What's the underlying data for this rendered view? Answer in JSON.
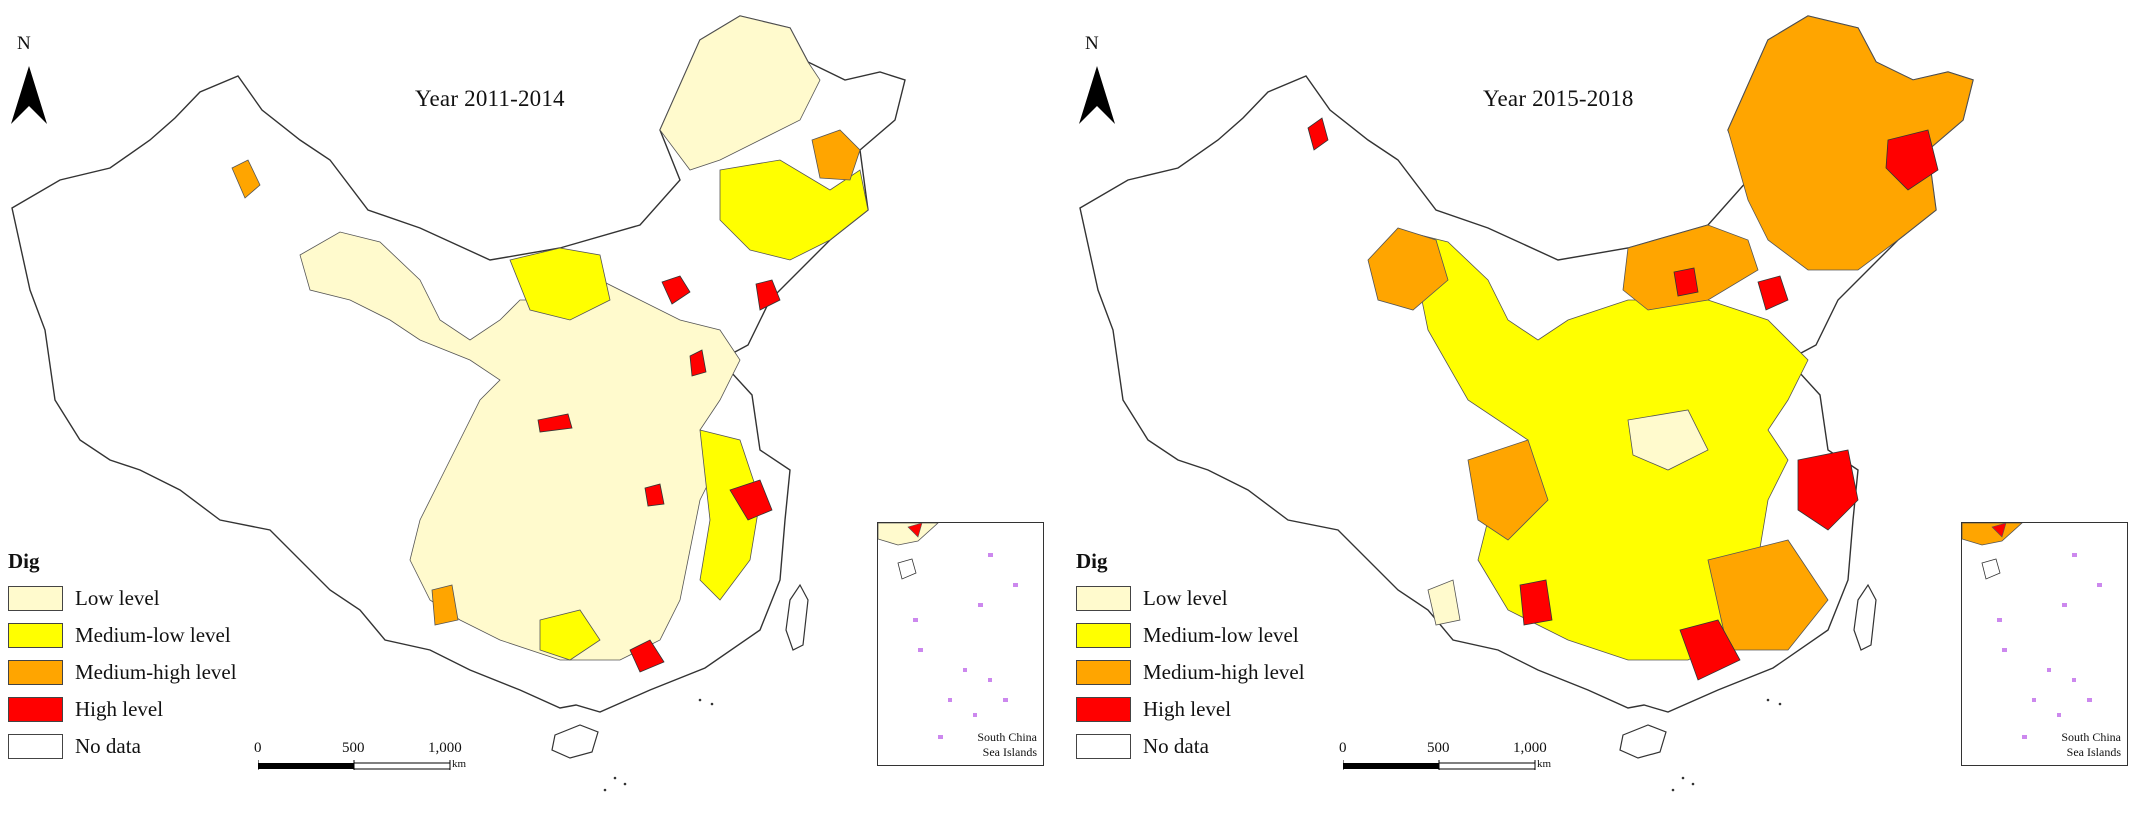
{
  "legend": {
    "title": "Dig",
    "items": [
      {
        "label": "Low level",
        "color": "#fffacd"
      },
      {
        "label": "Medium-low level",
        "color": "#ffff00"
      },
      {
        "label": "Medium-high level",
        "color": "#ffa500"
      },
      {
        "label": "High level",
        "color": "#ff0000"
      },
      {
        "label": "No data",
        "color": "#ffffff"
      }
    ]
  },
  "north_arrow": {
    "label": "N"
  },
  "scale_bar": {
    "ticks": [
      "0",
      "500",
      "1,000"
    ],
    "unit": "km"
  },
  "inset": {
    "label_line1": "South China",
    "label_line2": "Sea Islands"
  },
  "maps": [
    {
      "title": "Year 2011-2014"
    },
    {
      "title": "Year 2015-2018"
    }
  ]
}
